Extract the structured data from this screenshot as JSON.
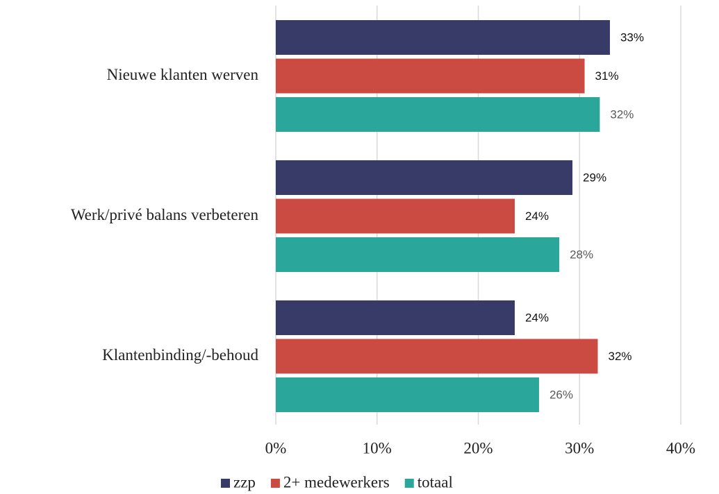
{
  "chart_data": {
    "type": "bar",
    "orientation": "horizontal",
    "categories": [
      "Nieuwe klanten werven",
      "Werk/privé balans verbeteren",
      "Klantenbinding/-behoud"
    ],
    "series": [
      {
        "name": "zzp",
        "color": "#383b68",
        "values": [
          33,
          29.3,
          23.6
        ],
        "value_labels": [
          "33%",
          "29%",
          "24%"
        ],
        "label_color": "#111111"
      },
      {
        "name": "2+ medewerkers",
        "color": "#cb4b43",
        "values": [
          30.5,
          23.6,
          31.8
        ],
        "value_labels": [
          "31%",
          "24%",
          "32%"
        ],
        "label_color": "#111111"
      },
      {
        "name": "totaal",
        "color": "#2aa69a",
        "values": [
          32,
          28,
          26
        ],
        "value_labels": [
          "32%",
          "28%",
          "26%"
        ],
        "label_color": "#595959"
      }
    ],
    "xlim": [
      0,
      40
    ],
    "xticks": [
      {
        "value": 0,
        "label": "0%"
      },
      {
        "value": 10,
        "label": "10%"
      },
      {
        "value": 20,
        "label": "20%"
      },
      {
        "value": 30,
        "label": "30%"
      },
      {
        "value": 40,
        "label": "40%"
      }
    ],
    "grid": true,
    "legend": "bottom"
  }
}
